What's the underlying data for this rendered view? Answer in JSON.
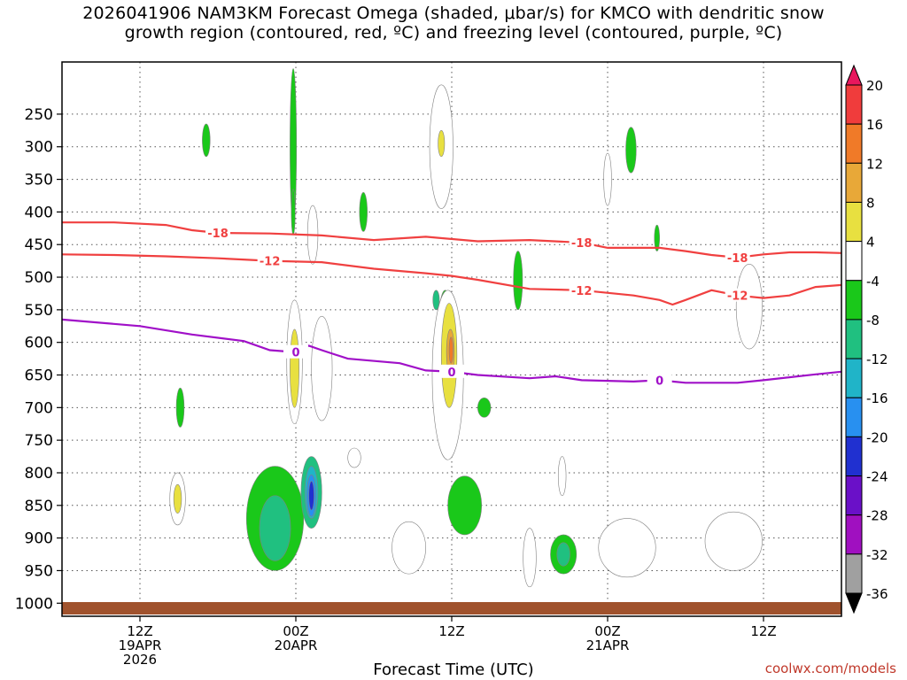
{
  "title_line1": "2026041906 NAM3KM Forecast Omega (shaded, μbar/s) for KMCO with dendritic snow",
  "title_line2": "growth region (contoured, red, ºC) and freezing level (contoured, purple, ºC)",
  "credit": "coolwx.com/models",
  "chart_data": {
    "type": "contour",
    "title": "2026041906 NAM3KM Forecast Omega (shaded, μbar/s) for KMCO with dendritic snow growth region (contoured, red, ºC) and freezing level (contoured, purple, ºC)",
    "xlabel": "Forecast Time (UTC)",
    "ylabel": "",
    "xlim": [
      0,
      60
    ],
    "ylim": [
      1020,
      170
    ],
    "y_ticks": [
      250,
      300,
      350,
      400,
      450,
      500,
      550,
      600,
      650,
      700,
      750,
      800,
      850,
      900,
      950,
      1000
    ],
    "x_ticks": [
      {
        "hour": 6,
        "lines": [
          "12Z",
          "19APR",
          "2026"
        ]
      },
      {
        "hour": 18,
        "lines": [
          "00Z",
          "20APR"
        ]
      },
      {
        "hour": 30,
        "lines": [
          "12Z"
        ]
      },
      {
        "hour": 42,
        "lines": [
          "00Z",
          "21APR"
        ]
      },
      {
        "hour": 54,
        "lines": [
          "12Z"
        ]
      }
    ],
    "grid": true,
    "colorbar": {
      "labels": [
        "20",
        "16",
        "12",
        "8",
        "4",
        "-4",
        "-8",
        "-12",
        "-16",
        "-20",
        "-24",
        "-28",
        "-32",
        "-36"
      ],
      "colors": [
        "#e8175d",
        "#f03c3c",
        "#f07a28",
        "#e8a838",
        "#e8e040",
        "#ffffff",
        "#1ac81a",
        "#20c080",
        "#20b4c8",
        "#2890f0",
        "#2030d0",
        "#6a10c8",
        "#a010c0",
        "#a0a0a0",
        "#000000"
      ]
    },
    "contours": [
      {
        "label": "-18",
        "color": "#f04040",
        "points": [
          [
            0,
            416
          ],
          [
            4,
            416
          ],
          [
            8,
            420
          ],
          [
            10,
            428
          ],
          [
            12,
            432
          ],
          [
            16,
            433
          ],
          [
            20,
            436
          ],
          [
            24,
            443
          ],
          [
            28,
            438
          ],
          [
            32,
            445
          ],
          [
            36,
            443
          ],
          [
            40,
            447
          ],
          [
            42,
            455
          ],
          [
            44,
            455
          ],
          [
            46,
            455
          ],
          [
            48,
            460
          ],
          [
            50,
            466
          ],
          [
            52,
            470
          ],
          [
            54,
            465
          ],
          [
            56,
            462
          ],
          [
            58,
            462
          ],
          [
            60,
            463
          ]
        ]
      },
      {
        "label": "-12",
        "color": "#f04040",
        "points": [
          [
            0,
            465
          ],
          [
            4,
            466
          ],
          [
            8,
            468
          ],
          [
            12,
            471
          ],
          [
            16,
            475
          ],
          [
            20,
            477
          ],
          [
            24,
            487
          ],
          [
            28,
            494
          ],
          [
            30,
            498
          ],
          [
            32,
            504
          ],
          [
            36,
            518
          ],
          [
            40,
            520
          ],
          [
            44,
            528
          ],
          [
            46,
            535
          ],
          [
            47,
            542
          ],
          [
            48,
            535
          ],
          [
            50,
            520
          ],
          [
            52,
            528
          ],
          [
            54,
            532
          ],
          [
            56,
            528
          ],
          [
            58,
            515
          ],
          [
            60,
            512
          ]
        ]
      },
      {
        "label": "0",
        "color": "#a010c8",
        "points": [
          [
            0,
            565
          ],
          [
            6,
            575
          ],
          [
            10,
            588
          ],
          [
            14,
            598
          ],
          [
            16,
            612
          ],
          [
            18,
            615
          ],
          [
            19,
            605
          ],
          [
            20,
            612
          ],
          [
            22,
            625
          ],
          [
            26,
            632
          ],
          [
            28,
            643
          ],
          [
            30,
            645
          ],
          [
            32,
            650
          ],
          [
            36,
            655
          ],
          [
            38,
            652
          ],
          [
            40,
            658
          ],
          [
            44,
            660
          ],
          [
            46,
            658
          ],
          [
            48,
            662
          ],
          [
            52,
            662
          ],
          [
            54,
            658
          ],
          [
            58,
            649
          ],
          [
            60,
            645
          ]
        ]
      }
    ],
    "shaded_regions": [
      {
        "value": -4,
        "center": [
          17.8,
          300
        ],
        "extent": [
          0.25,
          120
        ]
      },
      {
        "value": -4,
        "center": [
          17.8,
          400
        ],
        "extent": [
          0.15,
          35
        ]
      },
      {
        "value": -4,
        "center": [
          11.1,
          290
        ],
        "extent": [
          0.3,
          25
        ]
      },
      {
        "value": -4,
        "center": [
          23.2,
          400
        ],
        "extent": [
          0.3,
          30
        ]
      },
      {
        "value": -4,
        "center": [
          29.5,
          560
        ],
        "extent": [
          0.45,
          40
        ]
      },
      {
        "value": -4,
        "center": [
          35.1,
          505
        ],
        "extent": [
          0.35,
          45
        ]
      },
      {
        "value": -4,
        "center": [
          43.8,
          305
        ],
        "extent": [
          0.4,
          35
        ]
      },
      {
        "value": -4,
        "center": [
          45.8,
          440
        ],
        "extent": [
          0.2,
          20
        ]
      },
      {
        "value": -4,
        "center": [
          9.1,
          700
        ],
        "extent": [
          0.3,
          30
        ]
      },
      {
        "value": -4,
        "center": [
          16.4,
          870
        ],
        "extent": [
          2.2,
          80
        ]
      },
      {
        "value": -4,
        "center": [
          31.0,
          850
        ],
        "extent": [
          1.3,
          45
        ]
      },
      {
        "value": -4,
        "center": [
          38.6,
          925
        ],
        "extent": [
          1.0,
          30
        ]
      },
      {
        "value": -4,
        "center": [
          32.5,
          700
        ],
        "extent": [
          0.5,
          15
        ]
      },
      {
        "value": 4,
        "center": [
          29.2,
          300
        ],
        "extent": [
          0.9,
          95
        ]
      },
      {
        "value": 4,
        "center": [
          42.0,
          350
        ],
        "extent": [
          0.3,
          40
        ]
      },
      {
        "value": 4,
        "center": [
          19.3,
          435
        ],
        "extent": [
          0.4,
          45
        ]
      },
      {
        "value": 4,
        "center": [
          52.9,
          545
        ],
        "extent": [
          1.0,
          65
        ]
      },
      {
        "value": 4,
        "center": [
          17.9,
          630
        ],
        "extent": [
          0.6,
          95
        ]
      },
      {
        "value": 4,
        "center": [
          20.0,
          640
        ],
        "extent": [
          0.8,
          80
        ]
      },
      {
        "value": 4,
        "center": [
          29.7,
          650
        ],
        "extent": [
          1.2,
          130
        ]
      },
      {
        "value": 4,
        "center": [
          8.9,
          840
        ],
        "extent": [
          0.6,
          40
        ]
      },
      {
        "value": 4,
        "center": [
          26.7,
          915
        ],
        "extent": [
          1.3,
          40
        ]
      },
      {
        "value": 4,
        "center": [
          36.0,
          930
        ],
        "extent": [
          0.5,
          45
        ]
      },
      {
        "value": 4,
        "center": [
          43.5,
          915
        ],
        "extent": [
          2.2,
          45
        ]
      },
      {
        "value": 4,
        "center": [
          51.7,
          905
        ],
        "extent": [
          2.2,
          45
        ]
      },
      {
        "value": 4,
        "center": [
          38.5,
          805
        ],
        "extent": [
          0.3,
          30
        ]
      },
      {
        "value": 4,
        "center": [
          22.5,
          777
        ],
        "extent": [
          0.5,
          15
        ]
      },
      {
        "value": 8,
        "center": [
          17.9,
          640
        ],
        "extent": [
          0.35,
          60
        ]
      },
      {
        "value": 8,
        "center": [
          29.8,
          620
        ],
        "extent": [
          0.6,
          80
        ]
      },
      {
        "value": 8,
        "center": [
          8.9,
          840
        ],
        "extent": [
          0.3,
          22
        ]
      },
      {
        "value": 8,
        "center": [
          29.2,
          295
        ],
        "extent": [
          0.25,
          20
        ]
      },
      {
        "value": 12,
        "center": [
          29.9,
          615
        ],
        "extent": [
          0.3,
          35
        ]
      },
      {
        "value": 16,
        "center": [
          29.95,
          612
        ],
        "extent": [
          0.15,
          20
        ]
      },
      {
        "value": -8,
        "center": [
          19.2,
          830
        ],
        "extent": [
          0.8,
          55
        ]
      },
      {
        "value": -8,
        "center": [
          16.4,
          885
        ],
        "extent": [
          1.2,
          50
        ]
      },
      {
        "value": -8,
        "center": [
          38.6,
          925
        ],
        "extent": [
          0.5,
          18
        ]
      },
      {
        "value": -8,
        "center": [
          28.8,
          535
        ],
        "extent": [
          0.25,
          15
        ]
      },
      {
        "value": -12,
        "center": [
          19.2,
          830
        ],
        "extent": [
          0.5,
          40
        ]
      },
      {
        "value": -16,
        "center": [
          19.2,
          835
        ],
        "extent": [
          0.35,
          32
        ]
      },
      {
        "value": -20,
        "center": [
          19.2,
          835
        ],
        "extent": [
          0.2,
          22
        ]
      }
    ]
  }
}
